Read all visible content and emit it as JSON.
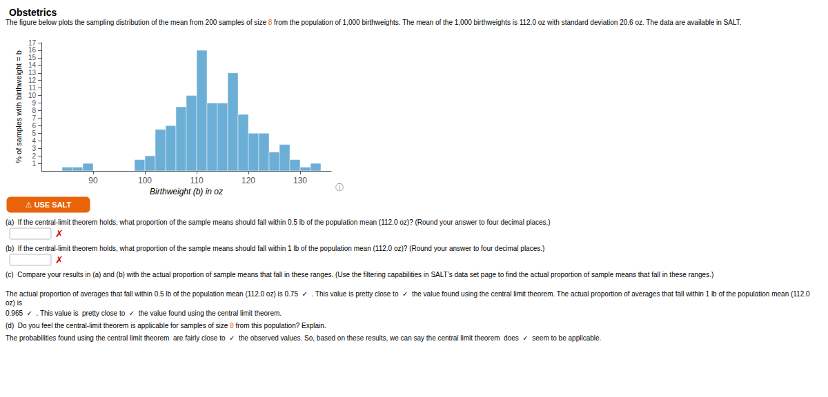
{
  "chart_data": {
    "type": "histogram",
    "title": "Obstetrics",
    "subtitle": [
      {
        "text": "The figure below plots the sampling distribution of the mean from 200 samples of size "
      },
      {
        "text": "8",
        "color": "#E8630A"
      },
      {
        "text": " from the population of 1,000 birthweights. The mean of the 1,000 birthweights is 112.0 oz with standard deviation 20.6 oz. The data are available in SALT."
      }
    ],
    "x": [
      84,
      86,
      88,
      90,
      98,
      100,
      102,
      104,
      106,
      108,
      110,
      112,
      114,
      116,
      118,
      120,
      122,
      124,
      126,
      128,
      130,
      132
    ],
    "values": [
      0.5,
      0.5,
      1.0,
      0,
      1.5,
      2.0,
      5.5,
      6.0,
      8.5,
      10.0,
      16.0,
      9.0,
      9.0,
      13.0,
      7.5,
      5.0,
      5.0,
      2.5,
      3.5,
      1.5,
      0.5,
      1.0
    ],
    "bar_width": 2,
    "color": "#6baed6",
    "xlabel": "Birthweight (b) in oz",
    "ylabel": "% of samples with birthweight = b",
    "xlim": [
      80,
      136
    ],
    "xticks": [
      90,
      100,
      110,
      120,
      130
    ],
    "ylim": [
      0,
      17
    ],
    "yticks": [
      1,
      2,
      3,
      4,
      5,
      6,
      7,
      8,
      9,
      10,
      11,
      12,
      13,
      14,
      15,
      16,
      17
    ],
    "grid": false,
    "legend": false,
    "annotations": [
      {
        "text": "ⓘ",
        "color": "#888888"
      },
      {
        "text": "⚠ USE SALT",
        "color": "#FFFFFF",
        "background": "#E8630A"
      },
      {
        "text": "(a)  If the central-limit theorem holds, what proportion of the sample means should fall within 0.5 lb of the population mean (112.0 oz)? (Round your answer to four decimal places.)"
      },
      {
        "text": "✗",
        "color": "#cc0000"
      },
      {
        "text": "(b)  If the central-limit theorem holds, what proportion of the sample means should fall within 1 lb of the population mean (112.0 oz)? (Round your answer to four decimal places.)"
      },
      {
        "text": "✗",
        "color": "#cc0000"
      },
      {
        "text": "(c)  Compare your results in (a) and (b) with the actual proportion of sample means that fall in these ranges. (Use the filtering capabilities in SALT’s data set page to find the actual proportion of sample means that fall in these ranges.)"
      },
      {
        "text": "The actual proportion of averages that fall within 0.5 lb of the population mean (112.0 oz) is 0.75  ✓  . This value is pretty close to  ✓  the value found using the central limit theorem. The actual proportion of averages that fall within 1 lb of the population mean (112.0 oz) is"
      },
      {
        "text": "0.965  ✓  . This value is  pretty close to  ✓  the value found using the central limit theorem."
      },
      {
        "parts": [
          {
            "text": "(d)  Do you feel the central-limit theorem is applicable for samples of size "
          },
          {
            "text": "8",
            "color": "#E8630A"
          },
          {
            "text": " from this population? Explain."
          }
        ]
      },
      {
        "text": "The probabilities found using the central limit theorem  are fairly close to  ✓  the observed values. So, based on these results, we can say the central limit theorem  does  ✓  seem to be applicable."
      }
    ]
  }
}
